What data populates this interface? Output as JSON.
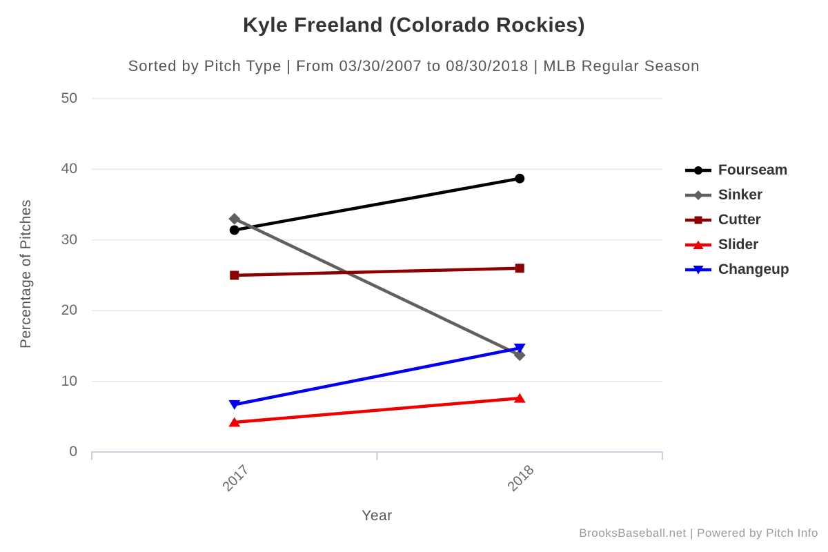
{
  "title": "Kyle Freeland (Colorado Rockies)",
  "subtitle": "Sorted by Pitch Type | From 03/30/2007 to 08/30/2018 | MLB Regular Season",
  "footer": "BrooksBaseball.net | Powered by Pitch Info",
  "colors": {
    "title": "#333333",
    "subtitle": "#555555",
    "tick_label": "#666666",
    "axis_title": "#555555",
    "legend_text": "#333333",
    "footer": "#9b9b9b",
    "gridline": "#e6e6e6",
    "axis_line": "#c6cfda"
  },
  "yaxis": {
    "label": "Percentage of Pitches"
  },
  "xaxis": {
    "label": "Year"
  },
  "chart_data": {
    "type": "line",
    "title": "Kyle Freeland (Colorado Rockies)",
    "subtitle": "Sorted by Pitch Type | From 03/30/2007 to 08/30/2018 | MLB Regular Season",
    "xlabel": "Year",
    "ylabel": "Percentage of Pitches",
    "categories": [
      "2017",
      "2018"
    ],
    "ylim": [
      0,
      50
    ],
    "yticks": [
      0,
      10,
      20,
      30,
      40,
      50
    ],
    "grid": true,
    "legend_position": "right",
    "series": [
      {
        "name": "Fourseam",
        "color": "#000000",
        "marker": "circle",
        "values": [
          31.4,
          38.7
        ]
      },
      {
        "name": "Sinker",
        "color": "#606060",
        "marker": "diamond",
        "values": [
          33.0,
          13.7
        ]
      },
      {
        "name": "Cutter",
        "color": "#8b0000",
        "marker": "square",
        "values": [
          25.0,
          26.0
        ]
      },
      {
        "name": "Slider",
        "color": "#ee0000",
        "marker": "triangle-up",
        "values": [
          4.2,
          7.6
        ]
      },
      {
        "name": "Changeup",
        "color": "#0000ee",
        "marker": "triangle-down",
        "values": [
          6.7,
          14.7
        ]
      }
    ]
  }
}
